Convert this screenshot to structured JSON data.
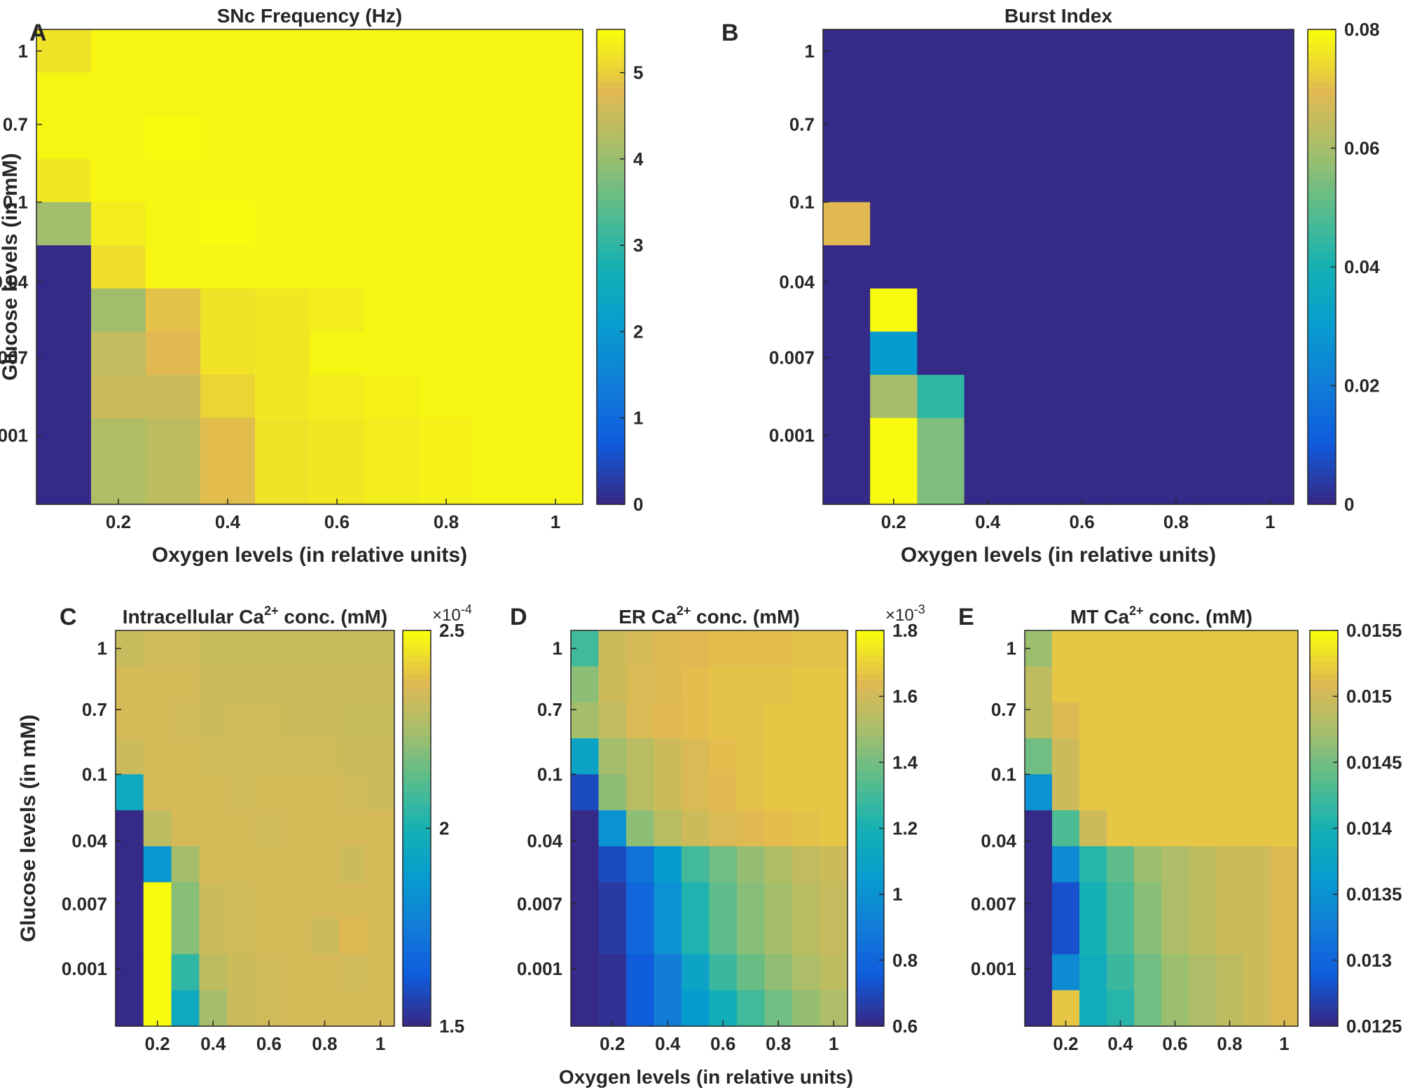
{
  "figure": {
    "xlabel_shared": "Oxygen levels (in relative units)"
  },
  "chart_data": [
    {
      "type": "heatmap",
      "panel": "A",
      "title": "SNc Frequency (Hz)",
      "xlabel": "Oxygen levels (in relative units)",
      "ylabel": "Glucose levels (in mM)",
      "x_ticks": [
        "0.2",
        "0.4",
        "0.6",
        "0.8",
        "1"
      ],
      "y_ticks": [
        "1",
        "0.7",
        "0.1",
        "0.04",
        "0.007",
        "0.001"
      ],
      "x_values": [
        0.1,
        0.2,
        0.3,
        0.4,
        0.5,
        0.6,
        0.7,
        0.8,
        0.9,
        1.0
      ],
      "y_rows_top_to_bottom": [
        1,
        0.85,
        0.7,
        0.55,
        0.1,
        0.07,
        0.04,
        0.02,
        0.007,
        0.004,
        0.001
      ],
      "clim": [
        0,
        5.5
      ],
      "colorbar_ticks": [
        "0",
        "1",
        "2",
        "3",
        "4",
        "5"
      ],
      "colorbar_exponent": "",
      "values": [
        [
          5.25,
          5.45,
          5.45,
          5.45,
          5.45,
          5.45,
          5.45,
          5.45,
          5.45,
          5.45
        ],
        [
          5.45,
          5.45,
          5.45,
          5.45,
          5.45,
          5.45,
          5.45,
          5.45,
          5.45,
          5.45
        ],
        [
          5.45,
          5.45,
          5.55,
          5.45,
          5.45,
          5.45,
          5.45,
          5.45,
          5.45,
          5.45
        ],
        [
          5.3,
          5.45,
          5.45,
          5.45,
          5.45,
          5.45,
          5.45,
          5.45,
          5.45,
          5.45
        ],
        [
          4.1,
          5.35,
          5.45,
          5.55,
          5.45,
          5.45,
          5.45,
          5.45,
          5.45,
          5.45
        ],
        [
          0.0,
          5.2,
          5.45,
          5.45,
          5.45,
          5.45,
          5.45,
          5.45,
          5.45,
          5.45
        ],
        [
          0.0,
          4.1,
          4.9,
          5.25,
          5.3,
          5.35,
          5.45,
          5.45,
          5.45,
          5.45
        ],
        [
          0.0,
          4.45,
          4.8,
          5.25,
          5.3,
          5.45,
          5.45,
          5.45,
          5.45,
          5.45
        ],
        [
          0.0,
          4.55,
          4.55,
          5.1,
          5.3,
          5.35,
          5.4,
          5.45,
          5.45,
          5.45
        ],
        [
          0.0,
          4.25,
          4.4,
          4.85,
          5.25,
          5.3,
          5.35,
          5.4,
          5.45,
          5.45
        ],
        [
          0.0,
          4.25,
          4.4,
          4.85,
          5.25,
          5.3,
          5.35,
          5.4,
          5.45,
          5.45
        ]
      ]
    },
    {
      "type": "heatmap",
      "panel": "B",
      "title": "Burst Index",
      "xlabel": "Oxygen levels (in relative units)",
      "ylabel": "",
      "x_ticks": [
        "0.2",
        "0.4",
        "0.6",
        "0.8",
        "1"
      ],
      "y_ticks": [
        "1",
        "0.7",
        "0.1",
        "0.04",
        "0.007",
        "0.001"
      ],
      "x_values": [
        0.1,
        0.2,
        0.3,
        0.4,
        0.5,
        0.6,
        0.7,
        0.8,
        0.9,
        1.0
      ],
      "y_rows_top_to_bottom": [
        1,
        0.85,
        0.7,
        0.55,
        0.1,
        0.07,
        0.04,
        0.02,
        0.007,
        0.004,
        0.001
      ],
      "clim": [
        0,
        0.08
      ],
      "colorbar_ticks": [
        "0",
        "0.02",
        "0.04",
        "0.06",
        "0.08"
      ],
      "colorbar_exponent": "",
      "values": [
        [
          0,
          0,
          0,
          0,
          0,
          0,
          0,
          0,
          0,
          0
        ],
        [
          0,
          0,
          0,
          0,
          0,
          0,
          0,
          0,
          0,
          0
        ],
        [
          0,
          0,
          0,
          0,
          0,
          0,
          0,
          0,
          0,
          0
        ],
        [
          0,
          0,
          0,
          0,
          0,
          0,
          0,
          0,
          0,
          0
        ],
        [
          0.07,
          0,
          0,
          0,
          0,
          0,
          0,
          0,
          0,
          0
        ],
        [
          0,
          0,
          0,
          0,
          0,
          0,
          0,
          0,
          0,
          0
        ],
        [
          0,
          0.08,
          0,
          0,
          0,
          0,
          0,
          0,
          0,
          0
        ],
        [
          0,
          0.03,
          0,
          0,
          0,
          0,
          0,
          0,
          0,
          0
        ],
        [
          0,
          0.06,
          0.044,
          0,
          0,
          0,
          0,
          0,
          0,
          0
        ],
        [
          0,
          0.08,
          0.055,
          0,
          0,
          0,
          0,
          0,
          0,
          0
        ],
        [
          0,
          0.08,
          0.055,
          0,
          0,
          0,
          0,
          0,
          0,
          0
        ]
      ]
    },
    {
      "type": "heatmap",
      "panel": "C",
      "title_prefix": "Intracellular Ca",
      "title_sup": "2+",
      "title_suffix": " conc. (mM)",
      "xlabel": "",
      "ylabel": "Glucose levels (in mM)",
      "x_ticks": [
        "0.2",
        "0.4",
        "0.6",
        "0.8",
        "1"
      ],
      "y_ticks": [
        "1",
        "0.7",
        "0.1",
        "0.04",
        "0.007",
        "0.001"
      ],
      "x_values": [
        0.1,
        0.2,
        0.3,
        0.4,
        0.5,
        0.6,
        0.7,
        0.8,
        0.9,
        1.0
      ],
      "y_rows_top_to_bottom": [
        1,
        0.85,
        0.7,
        0.55,
        0.1,
        0.07,
        0.04,
        0.02,
        0.007,
        0.004,
        0.001
      ],
      "clim": [
        1.5,
        2.5
      ],
      "colorbar_ticks": [
        "1.5",
        "2",
        "2.5"
      ],
      "colorbar_exponent": "×10",
      "colorbar_exponent_power": "-4",
      "values": [
        [
          2.32,
          2.34,
          2.34,
          2.32,
          2.32,
          2.32,
          2.32,
          2.32,
          2.32,
          2.32
        ],
        [
          2.35,
          2.35,
          2.35,
          2.33,
          2.33,
          2.33,
          2.33,
          2.33,
          2.33,
          2.33
        ],
        [
          2.35,
          2.35,
          2.34,
          2.33,
          2.34,
          2.34,
          2.33,
          2.33,
          2.32,
          2.32
        ],
        [
          2.33,
          2.35,
          2.35,
          2.34,
          2.34,
          2.34,
          2.34,
          2.34,
          2.33,
          2.33
        ],
        [
          1.95,
          2.35,
          2.35,
          2.35,
          2.34,
          2.35,
          2.35,
          2.35,
          2.34,
          2.33
        ],
        [
          1.5,
          2.3,
          2.35,
          2.35,
          2.35,
          2.34,
          2.35,
          2.35,
          2.35,
          2.35
        ],
        [
          1.5,
          1.85,
          2.25,
          2.35,
          2.35,
          2.35,
          2.35,
          2.35,
          2.33,
          2.35
        ],
        [
          1.5,
          2.5,
          2.2,
          2.33,
          2.34,
          2.35,
          2.35,
          2.35,
          2.35,
          2.35
        ],
        [
          1.5,
          2.5,
          2.2,
          2.33,
          2.34,
          2.35,
          2.35,
          2.33,
          2.37,
          2.35
        ],
        [
          1.5,
          2.5,
          2.05,
          2.3,
          2.33,
          2.34,
          2.35,
          2.35,
          2.34,
          2.35
        ],
        [
          1.5,
          2.5,
          1.95,
          2.25,
          2.33,
          2.34,
          2.35,
          2.35,
          2.35,
          2.35
        ]
      ]
    },
    {
      "type": "heatmap",
      "panel": "D",
      "title_prefix": "ER Ca",
      "title_sup": "2+",
      "title_suffix": " conc. (mM)",
      "xlabel": "",
      "ylabel": "",
      "x_ticks": [
        "0.2",
        "0.4",
        "0.6",
        "0.8",
        "1"
      ],
      "y_ticks": [
        "1",
        "0.7",
        "0.1",
        "0.04",
        "0.007",
        "0.001"
      ],
      "x_values": [
        0.1,
        0.2,
        0.3,
        0.4,
        0.5,
        0.6,
        0.7,
        0.8,
        0.9,
        1.0
      ],
      "y_rows_top_to_bottom": [
        1,
        0.85,
        0.7,
        0.55,
        0.1,
        0.07,
        0.04,
        0.02,
        0.007,
        0.004,
        0.001
      ],
      "clim": [
        0.6,
        1.8
      ],
      "colorbar_ticks": [
        "0.6",
        "0.8",
        "1",
        "1.2",
        "1.4",
        "1.6",
        "1.8"
      ],
      "colorbar_exponent": "×10",
      "colorbar_exponent_power": "-3",
      "values": [
        [
          1.3,
          1.6,
          1.62,
          1.64,
          1.65,
          1.66,
          1.66,
          1.66,
          1.67,
          1.67
        ],
        [
          1.45,
          1.6,
          1.63,
          1.64,
          1.66,
          1.67,
          1.67,
          1.67,
          1.68,
          1.68
        ],
        [
          1.5,
          1.57,
          1.63,
          1.65,
          1.66,
          1.67,
          1.67,
          1.68,
          1.68,
          1.68
        ],
        [
          1.1,
          1.5,
          1.55,
          1.6,
          1.63,
          1.66,
          1.67,
          1.68,
          1.68,
          1.68
        ],
        [
          0.7,
          1.45,
          1.55,
          1.6,
          1.63,
          1.65,
          1.67,
          1.68,
          1.68,
          1.68
        ],
        [
          0.6,
          1.0,
          1.45,
          1.55,
          1.6,
          1.63,
          1.65,
          1.66,
          1.67,
          1.68
        ],
        [
          0.6,
          0.7,
          0.85,
          1.05,
          1.3,
          1.4,
          1.47,
          1.53,
          1.57,
          1.6
        ],
        [
          0.6,
          0.65,
          0.8,
          1.0,
          1.22,
          1.36,
          1.44,
          1.5,
          1.55,
          1.58
        ],
        [
          0.6,
          0.65,
          0.8,
          1.0,
          1.22,
          1.36,
          1.44,
          1.5,
          1.55,
          1.58
        ],
        [
          0.6,
          0.62,
          0.75,
          0.9,
          1.1,
          1.28,
          1.38,
          1.46,
          1.52,
          1.56
        ],
        [
          0.6,
          0.62,
          0.75,
          0.9,
          1.05,
          1.18,
          1.3,
          1.4,
          1.47,
          1.52
        ]
      ]
    },
    {
      "type": "heatmap",
      "panel": "E",
      "title_prefix": "MT Ca",
      "title_sup": "2+",
      "title_suffix": " conc. (mM)",
      "xlabel": "",
      "ylabel": "",
      "x_ticks": [
        "0.2",
        "0.4",
        "0.6",
        "0.8",
        "1"
      ],
      "y_ticks": [
        "1",
        "0.7",
        "0.1",
        "0.04",
        "0.007",
        "0.001"
      ],
      "x_values": [
        0.1,
        0.2,
        0.3,
        0.4,
        0.5,
        0.6,
        0.7,
        0.8,
        0.9,
        1.0
      ],
      "y_rows_top_to_bottom": [
        1,
        0.85,
        0.7,
        0.55,
        0.1,
        0.07,
        0.04,
        0.02,
        0.007,
        0.004,
        0.001
      ],
      "clim": [
        0.0125,
        0.0155
      ],
      "colorbar_ticks": [
        "0.0125",
        "0.013",
        "0.0135",
        "0.014",
        "0.0145",
        "0.015",
        "0.0155"
      ],
      "colorbar_exponent": "",
      "values": [
        [
          0.0147,
          0.0152,
          0.0152,
          0.0152,
          0.0152,
          0.0152,
          0.0152,
          0.0152,
          0.0152,
          0.0152
        ],
        [
          0.0149,
          0.0152,
          0.0152,
          0.0152,
          0.0152,
          0.0152,
          0.0152,
          0.0152,
          0.0152,
          0.0152
        ],
        [
          0.0149,
          0.0151,
          0.0152,
          0.0152,
          0.0152,
          0.0152,
          0.0152,
          0.0152,
          0.0152,
          0.0152
        ],
        [
          0.0145,
          0.015,
          0.0152,
          0.0152,
          0.0152,
          0.0152,
          0.0152,
          0.0152,
          0.0152,
          0.0152
        ],
        [
          0.0135,
          0.015,
          0.0152,
          0.0152,
          0.0152,
          0.0152,
          0.0152,
          0.0152,
          0.0152,
          0.0152
        ],
        [
          0.0125,
          0.0143,
          0.015,
          0.0152,
          0.0152,
          0.0152,
          0.0152,
          0.0152,
          0.0152,
          0.0152
        ],
        [
          0.0125,
          0.0134,
          0.0141,
          0.0144,
          0.0147,
          0.0148,
          0.0149,
          0.015,
          0.015,
          0.0151
        ],
        [
          0.0125,
          0.0128,
          0.014,
          0.0143,
          0.0146,
          0.0148,
          0.0149,
          0.015,
          0.015,
          0.0151
        ],
        [
          0.0125,
          0.0128,
          0.014,
          0.0143,
          0.0146,
          0.0148,
          0.0149,
          0.015,
          0.015,
          0.0151
        ],
        [
          0.0125,
          0.0134,
          0.0139,
          0.0142,
          0.0145,
          0.0147,
          0.0148,
          0.0149,
          0.015,
          0.0151
        ],
        [
          0.0125,
          0.0152,
          0.0139,
          0.0141,
          0.0145,
          0.0147,
          0.0148,
          0.0149,
          0.015,
          0.0151
        ]
      ]
    }
  ]
}
